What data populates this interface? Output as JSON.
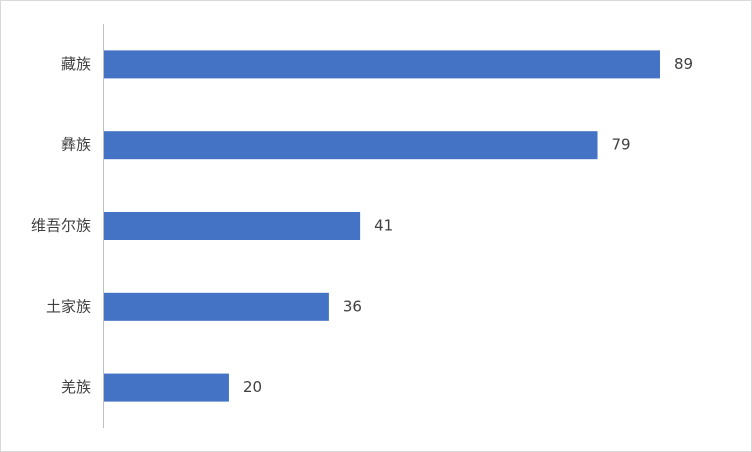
{
  "chart_data": {
    "type": "bar",
    "orientation": "horizontal",
    "categories": [
      "藏族",
      "彝族",
      "维吾尔族",
      "土家族",
      "羌族"
    ],
    "values": [
      89,
      79,
      41,
      36,
      20
    ],
    "color": "#4472c4"
  }
}
